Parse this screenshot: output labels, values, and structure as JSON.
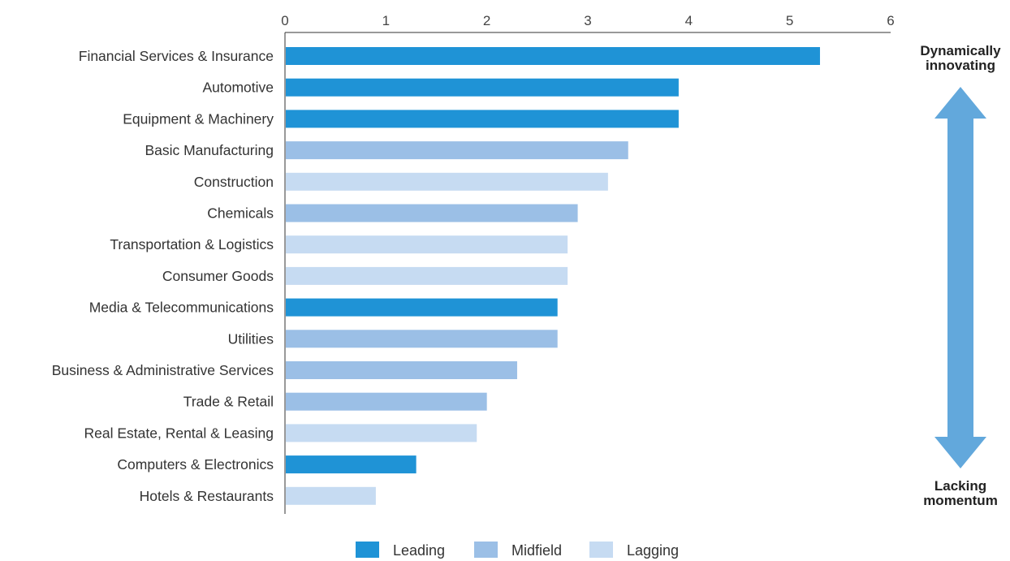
{
  "chart_data": {
    "type": "bar",
    "orientation": "horizontal",
    "title": "",
    "xlabel": "",
    "ylabel": "",
    "xlim": [
      0,
      6
    ],
    "x_ticks": [
      0,
      1,
      2,
      3,
      4,
      5,
      6
    ],
    "x_axis_position": "top",
    "grid": false,
    "categories": [
      "Financial Services & Insurance",
      "Automotive",
      "Equipment & Machinery",
      "Basic Manufacturing",
      "Construction",
      "Chemicals",
      "Transportation & Logistics",
      "Consumer Goods",
      "Media & Telecommunications",
      "Utilities",
      "Business & Administrative Services",
      "Trade & Retail",
      "Real Estate, Rental & Leasing",
      "Computers & Electronics",
      "Hotels & Restaurants"
    ],
    "values": [
      5.3,
      3.9,
      3.9,
      3.4,
      3.2,
      2.9,
      2.8,
      2.8,
      2.7,
      2.7,
      2.3,
      2.0,
      1.9,
      1.3,
      0.9
    ],
    "groups": [
      "Leading",
      "Leading",
      "Leading",
      "Midfield",
      "Lagging",
      "Midfield",
      "Lagging",
      "Lagging",
      "Leading",
      "Midfield",
      "Midfield",
      "Midfield",
      "Lagging",
      "Leading",
      "Lagging"
    ],
    "legend": {
      "placement": "bottom",
      "entries": [
        {
          "name": "Leading",
          "color": "#1f93d6"
        },
        {
          "name": "Midfield",
          "color": "#9bbfe6"
        },
        {
          "name": "Lagging",
          "color": "#c6dbf2"
        }
      ]
    },
    "scale_arrow": {
      "top_label": [
        "Dynamically",
        "innovating"
      ],
      "bottom_label": [
        "Lacking",
        "momentum"
      ],
      "color": "#62a8dc"
    },
    "text_color": "#333333",
    "axis_color": "#333333"
  }
}
